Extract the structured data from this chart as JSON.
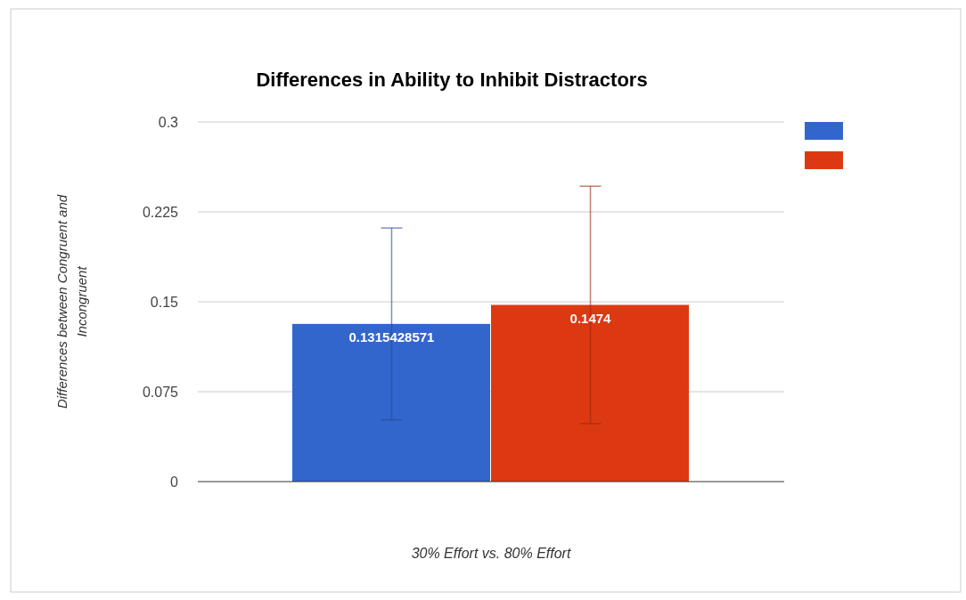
{
  "chart_data": {
    "type": "bar",
    "title": "Differences in Ability to Inhibit Distractors",
    "xlabel": "30% Effort vs. 80% Effort",
    "ylabel": "Differences between Congruent and Incongruent",
    "categories": [
      null
    ],
    "series": [
      {
        "color": "#3366cc",
        "values": [
          0.1315428571
        ],
        "errors": [
          0.08
        ]
      },
      {
        "color": "#dc3912",
        "values": [
          0.1474
        ],
        "errors": [
          0.099
        ]
      }
    ],
    "ylim": [
      0,
      0.3
    ],
    "yticks": [
      0,
      0.075,
      0.15,
      0.225,
      0.3
    ],
    "grid": "y",
    "data_labels": true
  }
}
